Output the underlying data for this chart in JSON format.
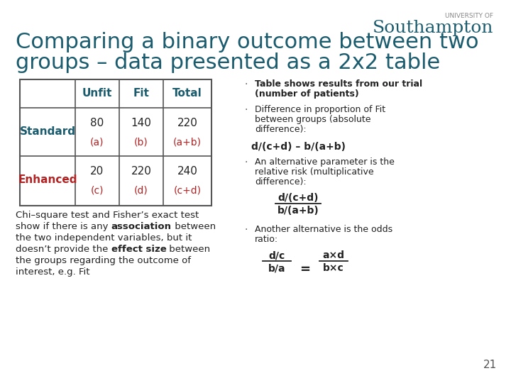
{
  "bg_color": "#ffffff",
  "title_line1": "Comparing a binary outcome between two",
  "title_line2": "groups – data presented as a 2x2 table",
  "title_color": "#1a5c6e",
  "soton_color": "#1a5c6e",
  "table_headers": [
    "",
    "Unfit",
    "Fit",
    "Total"
  ],
  "row1_label": "Standard",
  "row2_label": "Enhanced",
  "row1_vals": [
    "80",
    "140",
    "220"
  ],
  "row1_letters": [
    "(a)",
    "(b)",
    "(a+b)"
  ],
  "row2_vals": [
    "20",
    "220",
    "240"
  ],
  "row2_letters": [
    "(c)",
    "(d)",
    "(c+d)"
  ],
  "red_color": "#b22222",
  "blue_color": "#1a5c6e",
  "bullet2_formula": "d/(c+d) – b/(a+b)",
  "bullet3_frac_num": "d/(c+d)",
  "bullet3_frac_den": "b/(a+b)",
  "bullet4_frac1_num": "d/c",
  "bullet4_frac1_den": "b/a",
  "bullet4_eq": "=",
  "bullet4_frac2_num": "a×d",
  "bullet4_frac2_den": "b×c",
  "page_number": "21"
}
